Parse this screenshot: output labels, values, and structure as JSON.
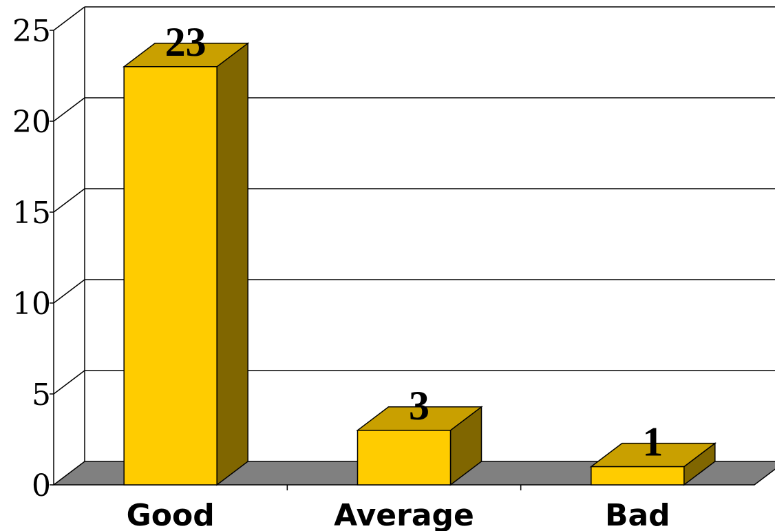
{
  "chart_data": {
    "type": "bar",
    "categories": [
      "Good",
      "Average",
      "Bad"
    ],
    "values": [
      23,
      3,
      1
    ],
    "data_labels": [
      "23",
      "3",
      "1"
    ],
    "ylim": [
      0,
      25
    ],
    "yticks": [
      0,
      5,
      10,
      15,
      20,
      25
    ],
    "ytick_labels": [
      "0",
      "5",
      "10",
      "15",
      "20",
      "25"
    ],
    "grid": true,
    "three_d": true,
    "colors": {
      "bar_front": "#FFCC00",
      "bar_top": "#C9A000",
      "bar_side": "#806600",
      "floor": "#808080"
    }
  }
}
